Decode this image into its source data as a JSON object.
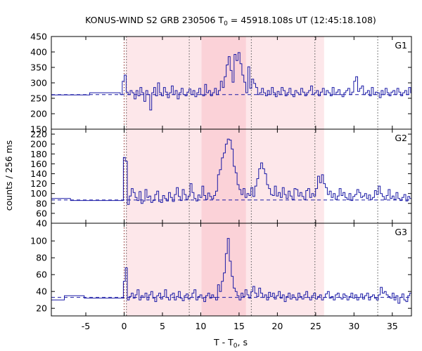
{
  "chart_data": {
    "type": "line",
    "title": {
      "prefix": "KONUS-WIND S2 GRB 230506 T",
      "sub": "0",
      "suffix": " = 45918.108s UT (12:45:18.108)"
    },
    "xlabel": {
      "prefix": "T - T",
      "sub": "0",
      "suffix": ", s"
    },
    "ylabel": "counts / 256 ms",
    "xlim": [
      -9.5,
      37.5
    ],
    "x_ticks": [
      "-5",
      "0",
      "5",
      "10",
      "15",
      "20",
      "25",
      "30",
      "35"
    ],
    "x_tick_values": [
      -5,
      0,
      5,
      10,
      15,
      20,
      25,
      30,
      35
    ],
    "shaded_intervals": [
      {
        "from": 0.2,
        "to": 26.1,
        "color": "#fde7ea"
      },
      {
        "from": 10.1,
        "to": 15.9,
        "color": "#fbd2d8"
      }
    ],
    "reference_lines": [
      {
        "x": 0.0,
        "color": "#8b1a1a",
        "style": "dotted"
      },
      {
        "x": 0.3,
        "color": "#555555",
        "style": "dotted"
      },
      {
        "x": 8.5,
        "color": "#555555",
        "style": "dotted"
      },
      {
        "x": 16.6,
        "color": "#555555",
        "style": "dotted"
      },
      {
        "x": 24.9,
        "color": "#555555",
        "style": "dotted"
      },
      {
        "x": 33.1,
        "color": "#555555",
        "style": "dotted"
      }
    ],
    "line_color": "#1a1aa6",
    "baseline_color": "#1a1aa6",
    "panels": [
      {
        "name": "G1",
        "ylim": [
          150,
          450
        ],
        "y_ticks": [
          150,
          200,
          250,
          300,
          350,
          400,
          450
        ],
        "background": 262,
        "pre_burst": [
          {
            "x0": -9.5,
            "x1": -4.5,
            "y": 261
          },
          {
            "x0": -4.5,
            "x1": -0.5,
            "y": 268
          }
        ],
        "data_start": -0.5,
        "bin": 0.256,
        "values": [
          262,
          305,
          325,
          270,
          262,
          275,
          268,
          248,
          275,
          258,
          285,
          268,
          240,
          275,
          262,
          212,
          268,
          285,
          258,
          300,
          268,
          258,
          285,
          270,
          252,
          268,
          290,
          262,
          275,
          248,
          268,
          282,
          262,
          258,
          270,
          280,
          262,
          275,
          255,
          268,
          282,
          262,
          258,
          295,
          268,
          275,
          258,
          268,
          282,
          262,
          275,
          305,
          285,
          320,
          358,
          385,
          340,
          302,
          392,
          372,
          398,
          362,
          325,
          302,
          268,
          352,
          282,
          312,
          298,
          285,
          262,
          268,
          282,
          268,
          258,
          275,
          262,
          285,
          268,
          255,
          272,
          262,
          285,
          275,
          258,
          268,
          282,
          262,
          255,
          275,
          268,
          262,
          282,
          270,
          258,
          268,
          275,
          290,
          262,
          268,
          275,
          258,
          270,
          282,
          262,
          275,
          268,
          258,
          285,
          262,
          270,
          278,
          262,
          255,
          268,
          275,
          282,
          262,
          270,
          305,
          320,
          272,
          282,
          290,
          262,
          268,
          275,
          258,
          285,
          262,
          270,
          268,
          252,
          275,
          262,
          282,
          268,
          258,
          270,
          275,
          262,
          282,
          270,
          258,
          268,
          275,
          262,
          285,
          268,
          258,
          255,
          305,
          278,
          282,
          298,
          288,
          262,
          275,
          282,
          268,
          292,
          275,
          262,
          288,
          270,
          282,
          268,
          275
        ]
      },
      {
        "name": "G2",
        "ylim": [
          40,
          230
        ],
        "y_ticks": [
          40,
          60,
          80,
          100,
          120,
          140,
          160,
          180,
          200,
          220
        ],
        "background": 87,
        "pre_burst": [
          {
            "x0": -9.5,
            "x1": -7.0,
            "y": 90
          },
          {
            "x0": -7.0,
            "x1": -0.1,
            "y": 86
          }
        ],
        "data_start": -0.1,
        "bin": 0.256,
        "values": [
          173,
          165,
          78,
          95,
          110,
          102,
          92,
          86,
          104,
          80,
          85,
          108,
          92,
          95,
          82,
          86,
          98,
          105,
          84,
          82,
          96,
          90,
          85,
          102,
          92,
          84,
          98,
          112,
          94,
          86,
          108,
          98,
          88,
          95,
          120,
          102,
          90,
          85,
          97,
          92,
          115,
          96,
          88,
          101,
          94,
          89,
          96,
          105,
          138,
          148,
          172,
          182,
          200,
          210,
          208,
          190,
          155,
          142,
          118,
          108,
          98,
          110,
          92,
          100,
          96,
          112,
          94,
          115,
          130,
          150,
          162,
          150,
          140,
          118,
          110,
          98,
          96,
          115,
          95,
          102,
          92,
          112,
          98,
          90,
          105,
          95,
          88,
          110,
          108,
          95,
          102,
          94,
          88,
          106,
          110,
          92,
          100,
          95,
          110,
          135,
          122,
          138,
          120,
          112,
          98,
          105,
          92,
          100,
          88,
          95,
          110,
          96,
          102,
          92,
          88,
          100,
          86,
          94,
          98,
          108,
          102,
          92,
          95,
          100,
          90,
          97,
          88,
          92,
          106,
          98,
          115,
          100,
          94,
          88,
          96,
          108,
          90,
          95,
          88,
          102,
          90,
          86,
          92,
          98,
          85,
          94,
          90,
          80,
          92,
          105,
          86,
          90,
          98,
          94,
          88,
          96,
          84,
          90,
          100,
          92
        ]
      },
      {
        "name": "G3",
        "ylim": [
          11,
          121
        ],
        "y_ticks": [
          20,
          40,
          60,
          80,
          100
        ],
        "background": 33,
        "pre_burst": [
          {
            "x0": -9.5,
            "x1": -7.8,
            "y": 30
          },
          {
            "x0": -7.8,
            "x1": -5.2,
            "y": 35
          },
          {
            "x0": -5.2,
            "x1": -0.1,
            "y": 32
          }
        ],
        "data_start": -0.1,
        "bin": 0.256,
        "values": [
          52,
          68,
          30,
          34,
          38,
          32,
          36,
          42,
          30,
          35,
          33,
          38,
          30,
          36,
          40,
          32,
          28,
          35,
          38,
          31,
          34,
          42,
          33,
          30,
          36,
          38,
          30,
          34,
          40,
          32,
          29,
          35,
          37,
          31,
          33,
          38,
          42,
          30,
          34,
          36,
          32,
          28,
          35,
          38,
          32,
          36,
          33,
          30,
          48,
          40,
          52,
          62,
          85,
          103,
          76,
          58,
          44,
          40,
          35,
          30,
          38,
          34,
          42,
          36,
          32,
          40,
          46,
          38,
          34,
          44,
          38,
          33,
          36,
          30,
          39,
          34,
          38,
          31,
          35,
          40,
          32,
          36,
          28,
          34,
          38,
          31,
          36,
          33,
          30,
          38,
          34,
          31,
          36,
          40,
          33,
          30,
          35,
          38,
          31,
          34,
          36,
          30,
          33,
          37,
          40,
          32,
          34,
          30,
          36,
          38,
          33,
          31,
          37,
          35,
          30,
          34,
          38,
          32,
          36,
          30,
          33,
          37,
          31,
          35,
          38,
          30,
          34,
          36,
          32,
          30,
          36,
          45,
          38,
          40,
          36,
          34,
          32,
          38,
          30,
          35,
          26,
          33,
          37,
          30,
          28,
          35,
          38,
          31,
          30,
          36,
          34,
          28,
          33,
          37,
          30,
          34,
          22,
          30,
          35
        ]
      }
    ]
  }
}
